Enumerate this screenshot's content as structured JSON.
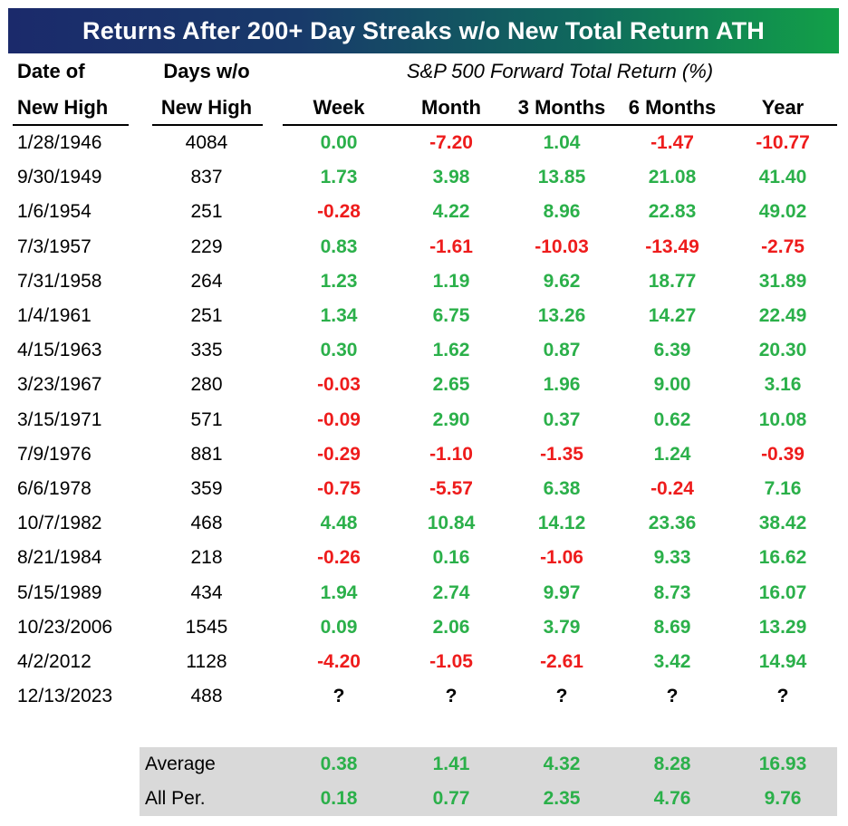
{
  "title": "Returns After 200+ Day Streaks w/o New Total Return ATH",
  "headers": {
    "date_line1": "Date of",
    "date_line2": "New High",
    "days_line1": "Days w/o",
    "days_line2": "New High",
    "group": "S&P 500 Forward Total Return (%)",
    "periods": [
      "Week",
      "Month",
      "3 Months",
      "6 Months",
      "Year"
    ]
  },
  "colors": {
    "positive": "#2bb04a",
    "negative": "#ee1c1c",
    "title_from": "#1b2a6b",
    "title_to": "#12a048",
    "summary_bg": "#d9d9d9"
  },
  "chart_data": {
    "type": "table",
    "title": "Returns After 200+ Day Streaks w/o New Total Return ATH",
    "columns": [
      "Date of New High",
      "Days w/o New High",
      "Week",
      "Month",
      "3 Months",
      "6 Months",
      "Year"
    ],
    "rows": [
      {
        "date": "1/28/1946",
        "days": "4084",
        "values": [
          "0.00",
          "-7.20",
          "1.04",
          "-1.47",
          "-10.77"
        ]
      },
      {
        "date": "9/30/1949",
        "days": "837",
        "values": [
          "1.73",
          "3.98",
          "13.85",
          "21.08",
          "41.40"
        ]
      },
      {
        "date": "1/6/1954",
        "days": "251",
        "values": [
          "-0.28",
          "4.22",
          "8.96",
          "22.83",
          "49.02"
        ]
      },
      {
        "date": "7/3/1957",
        "days": "229",
        "values": [
          "0.83",
          "-1.61",
          "-10.03",
          "-13.49",
          "-2.75"
        ]
      },
      {
        "date": "7/31/1958",
        "days": "264",
        "values": [
          "1.23",
          "1.19",
          "9.62",
          "18.77",
          "31.89"
        ]
      },
      {
        "date": "1/4/1961",
        "days": "251",
        "values": [
          "1.34",
          "6.75",
          "13.26",
          "14.27",
          "22.49"
        ]
      },
      {
        "date": "4/15/1963",
        "days": "335",
        "values": [
          "0.30",
          "1.62",
          "0.87",
          "6.39",
          "20.30"
        ]
      },
      {
        "date": "3/23/1967",
        "days": "280",
        "values": [
          "-0.03",
          "2.65",
          "1.96",
          "9.00",
          "3.16"
        ]
      },
      {
        "date": "3/15/1971",
        "days": "571",
        "values": [
          "-0.09",
          "2.90",
          "0.37",
          "0.62",
          "10.08"
        ]
      },
      {
        "date": "7/9/1976",
        "days": "881",
        "values": [
          "-0.29",
          "-1.10",
          "-1.35",
          "1.24",
          "-0.39"
        ]
      },
      {
        "date": "6/6/1978",
        "days": "359",
        "values": [
          "-0.75",
          "-5.57",
          "6.38",
          "-0.24",
          "7.16"
        ]
      },
      {
        "date": "10/7/1982",
        "days": "468",
        "values": [
          "4.48",
          "10.84",
          "14.12",
          "23.36",
          "38.42"
        ]
      },
      {
        "date": "8/21/1984",
        "days": "218",
        "values": [
          "-0.26",
          "0.16",
          "-1.06",
          "9.33",
          "16.62"
        ]
      },
      {
        "date": "5/15/1989",
        "days": "434",
        "values": [
          "1.94",
          "2.74",
          "9.97",
          "8.73",
          "16.07"
        ]
      },
      {
        "date": "10/23/2006",
        "days": "1545",
        "values": [
          "0.09",
          "2.06",
          "3.79",
          "8.69",
          "13.29"
        ]
      },
      {
        "date": "4/2/2012",
        "days": "1128",
        "values": [
          "-4.20",
          "-1.05",
          "-2.61",
          "3.42",
          "14.94"
        ]
      },
      {
        "date": "12/13/2023",
        "days": "488",
        "values": [
          "?",
          "?",
          "?",
          "?",
          "?"
        ]
      }
    ],
    "summary": [
      {
        "label": "Average",
        "values": [
          "0.38",
          "1.41",
          "4.32",
          "8.28",
          "16.93"
        ]
      },
      {
        "label": "All Per.",
        "values": [
          "0.18",
          "0.77",
          "2.35",
          "4.76",
          "9.76"
        ]
      }
    ]
  }
}
